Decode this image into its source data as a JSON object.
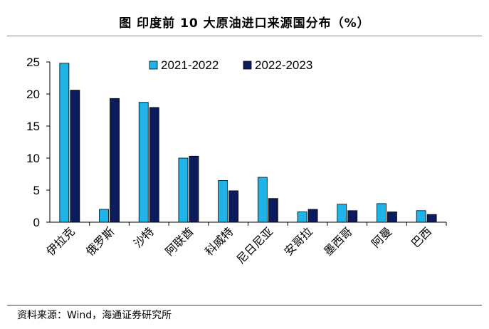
{
  "title": "图  印度前 10 大原油进口来源国分布（%）",
  "source": "资料来源：Wind，海通证券研究所",
  "chart_data": {
    "type": "bar",
    "title": "印度前 10 大原油进口来源国分布（%）",
    "categories": [
      "伊拉克",
      "俄罗斯",
      "沙特",
      "阿联酋",
      "科威特",
      "尼日尼亚",
      "安哥拉",
      "墨西哥",
      "阿曼",
      "巴西"
    ],
    "series": [
      {
        "name": "2021-2022",
        "color": "#1fb3e8",
        "values": [
          24.8,
          2.0,
          18.7,
          10.0,
          6.5,
          7.0,
          1.6,
          2.8,
          2.9,
          1.8
        ]
      },
      {
        "name": "2022-2023",
        "color": "#0c1b5c",
        "values": [
          20.6,
          19.3,
          17.9,
          10.3,
          4.9,
          3.7,
          2.0,
          1.8,
          1.6,
          1.2
        ]
      }
    ],
    "yticks": [
      0,
      5,
      10,
      15,
      20,
      25
    ],
    "ylim": [
      0,
      25
    ],
    "legend_position": "top-right",
    "grid": false
  }
}
